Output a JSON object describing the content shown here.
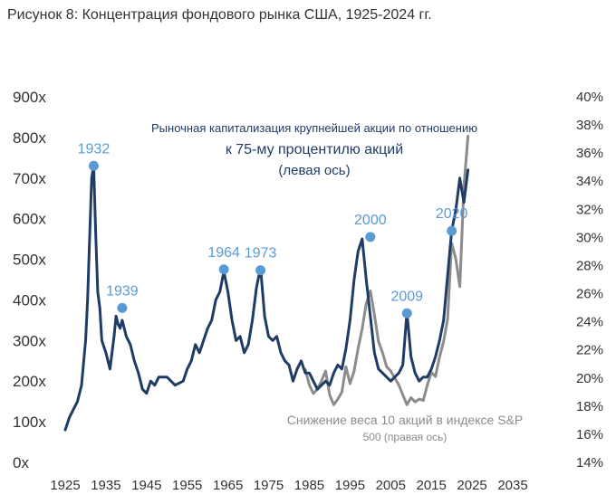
{
  "title": "Рисунок 8: Концентрация фондового рынка США, 1925-2024 гг.",
  "chart_data": {
    "type": "line",
    "x_axis": {
      "range": [
        1925,
        2035
      ],
      "ticks": [
        "1925",
        "1935",
        "1945",
        "1955",
        "1965",
        "1975",
        "1985",
        "1995",
        "2005",
        "2015",
        "2025",
        "2035"
      ]
    },
    "y_left": {
      "range": [
        0,
        900
      ],
      "ticks": [
        "0x",
        "100x",
        "200x",
        "300x",
        "400x",
        "500x",
        "600x",
        "700x",
        "800x",
        "900x"
      ]
    },
    "y_right": {
      "range": [
        14,
        40
      ],
      "ticks": [
        "14%",
        "16%",
        "18%",
        "20%",
        "22%",
        "24%",
        "26%",
        "28%",
        "30%",
        "32%",
        "34%",
        "36%",
        "38%",
        "40%"
      ]
    },
    "colors": {
      "left_series": "#1f3c66",
      "right_series": "#8c8c8c",
      "markers": "#5b9bd5"
    },
    "left_series_annotation": [
      "Рыночная капитализация крупнейшей акции по отношению",
      "к 75-му процентилю акций",
      "(левая ось)"
    ],
    "right_series_annotation": [
      "Снижение веса 10 акций в индексе S&P",
      "500 (правая ось)"
    ],
    "series": [
      {
        "axis": "left",
        "x": [
          1925,
          1926,
          1927,
          1928,
          1929,
          1930,
          1930.5,
          1931,
          1931.5,
          1932,
          1932.5,
          1933,
          1933.5,
          1934,
          1935,
          1936,
          1937,
          1937.5,
          1938,
          1938.5,
          1939,
          1940,
          1941,
          1942,
          1943,
          1944,
          1945,
          1946,
          1947,
          1948,
          1950,
          1952,
          1954,
          1955,
          1956,
          1957,
          1958,
          1959,
          1960,
          1961,
          1962,
          1963,
          1964,
          1965,
          1966,
          1967,
          1968,
          1969,
          1970,
          1971,
          1972,
          1973,
          1974,
          1975,
          1976,
          1977,
          1978,
          1979,
          1980,
          1981,
          1982,
          1983,
          1984,
          1985,
          1986,
          1987,
          1988,
          1989,
          1990,
          1991,
          1992,
          1993,
          1994,
          1995,
          1996,
          1997,
          1998,
          1999,
          2000,
          2001,
          2002,
          2003,
          2004,
          2005,
          2006,
          2007,
          2008,
          2009,
          2010,
          2011,
          2012,
          2013,
          2014,
          2015,
          2016,
          2017,
          2018,
          2019,
          2020,
          2021,
          2022,
          2023,
          2024
        ],
        "values": [
          80,
          110,
          130,
          150,
          190,
          300,
          400,
          550,
          700,
          730,
          560,
          420,
          380,
          300,
          270,
          230,
          310,
          360,
          340,
          330,
          350,
          310,
          290,
          250,
          220,
          180,
          170,
          200,
          190,
          210,
          210,
          190,
          200,
          230,
          250,
          290,
          270,
          300,
          330,
          350,
          400,
          420,
          470,
          420,
          350,
          300,
          310,
          270,
          290,
          350,
          430,
          480,
          360,
          310,
          300,
          310,
          270,
          250,
          240,
          200,
          230,
          250,
          220,
          220,
          200,
          180,
          190,
          200,
          190,
          220,
          240,
          230,
          280,
          350,
          450,
          520,
          550,
          450,
          360,
          270,
          230,
          220,
          210,
          200,
          210,
          220,
          240,
          370,
          260,
          220,
          200,
          210,
          210,
          230,
          260,
          300,
          350,
          460,
          570,
          620,
          700,
          640,
          720
        ]
      },
      {
        "axis": "right",
        "x": [
          1984,
          1985,
          1986,
          1987,
          1988,
          1989,
          1990,
          1991,
          1992,
          1993,
          1994,
          1995,
          1996,
          1997,
          1998,
          1999,
          2000,
          2001,
          2002,
          2003,
          2004,
          2005,
          2006,
          2007,
          2008,
          2009,
          2010,
          2011,
          2012,
          2013,
          2014,
          2015,
          2016,
          2017,
          2018,
          2019,
          2020,
          2021,
          2022,
          2023,
          2024
        ],
        "values": [
          20.6,
          19.5,
          18.9,
          19.2,
          19.8,
          20.5,
          18.8,
          18.1,
          18.5,
          19.0,
          20.8,
          19.6,
          20.5,
          22.1,
          23.5,
          25.3,
          26.2,
          24.5,
          22.6,
          21.8,
          20.8,
          20.5,
          20.0,
          19.5,
          18.8,
          18.1,
          18.6,
          18.3,
          18.5,
          18.4,
          19.5,
          20.4,
          20.1,
          21.5,
          22.6,
          24.2,
          29.6,
          28.5,
          26.5,
          33.6,
          37.2
        ]
      }
    ],
    "markers": [
      {
        "label": "1932",
        "x": 1932,
        "y": 730
      },
      {
        "label": "1939",
        "x": 1939,
        "y": 380
      },
      {
        "label": "1964",
        "x": 1964,
        "y": 475
      },
      {
        "label": "1973",
        "x": 1973,
        "y": 473
      },
      {
        "label": "2000",
        "x": 2000,
        "y": 555
      },
      {
        "label": "2009",
        "x": 2009,
        "y": 367
      },
      {
        "label": "2020",
        "x": 2020,
        "y": 570
      }
    ]
  }
}
